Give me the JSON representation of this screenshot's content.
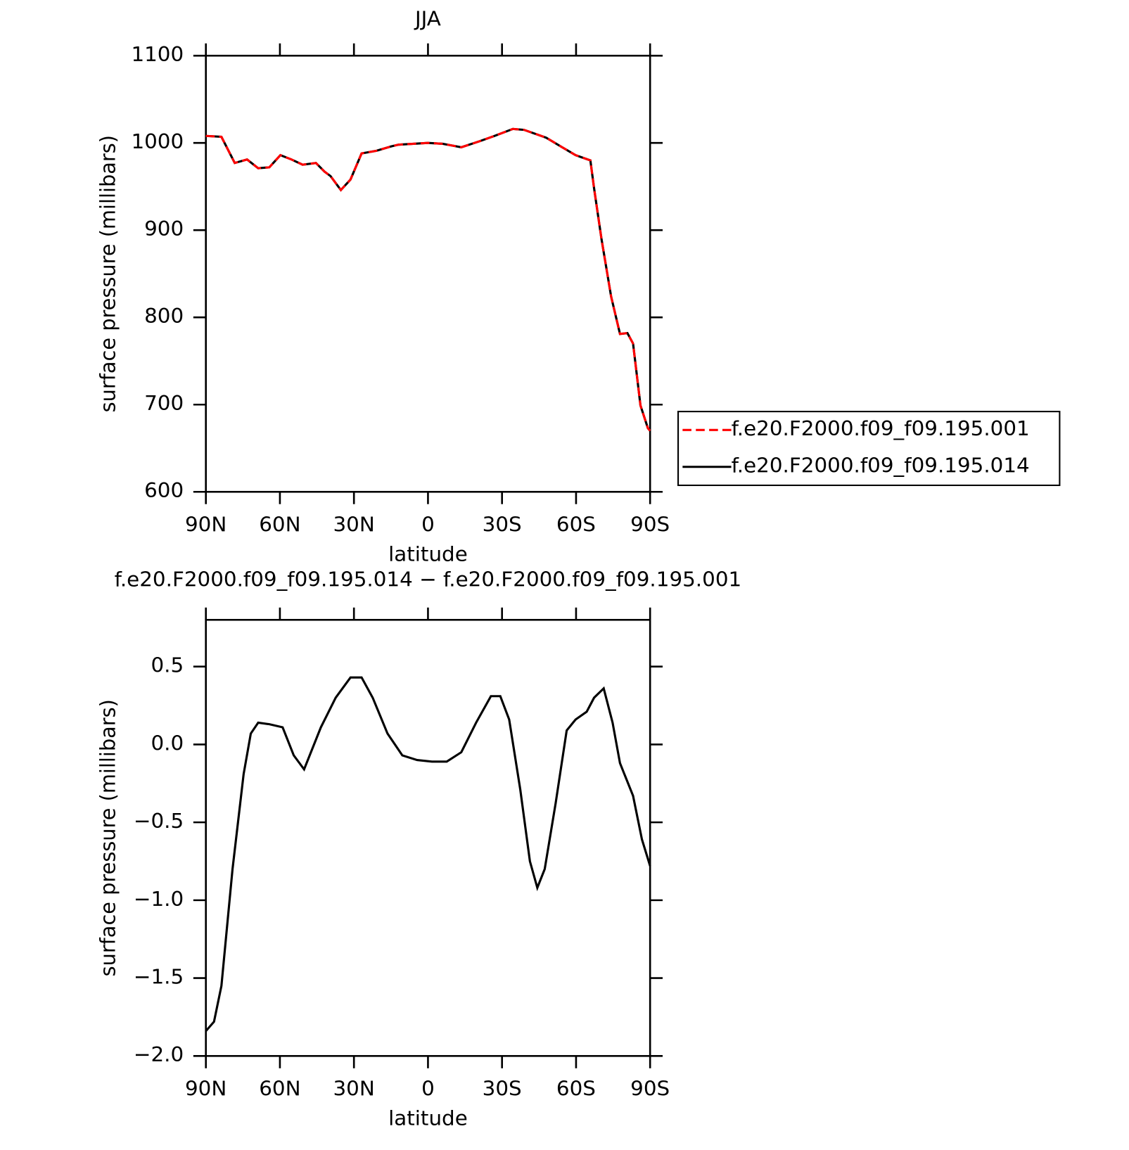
{
  "chart_data": [
    {
      "type": "line",
      "title": "JJA",
      "xlabel": "latitude",
      "ylabel": "surface pressure (millibars)",
      "x": [
        90,
        83.7,
        78.3,
        73.3,
        68.8,
        64.3,
        59.8,
        55.3,
        50.8,
        45.4,
        41.9,
        39.5,
        35.3,
        31.4,
        26.9,
        20.9,
        14.9,
        11.9,
        5.9,
        0,
        -6,
        -13.5,
        -21,
        -26.9,
        -34.4,
        -38.9,
        -47.9,
        -53.8,
        -59.8,
        -65.8,
        -67.3,
        -70.3,
        -74.2,
        -77.8,
        -80.8,
        -83.1,
        -86.1,
        -89.1,
        -90
      ],
      "series": [
        {
          "name": "f.e20.F2000.f09_f09.195.001",
          "color": "#ff0000",
          "linestyle": "dashed",
          "values": [
            1008,
            1007,
            977,
            981,
            971,
            972,
            986,
            981,
            975,
            977,
            967,
            962,
            946,
            958,
            988,
            991,
            996,
            998,
            999,
            1000,
            999,
            995,
            1002,
            1008,
            1016,
            1015,
            1006,
            996,
            986,
            980,
            948,
            890,
            824,
            781,
            782,
            770,
            699,
            673,
            670
          ]
        },
        {
          "name": "f.e20.F2000.f09_f09.195.014",
          "color": "#000000",
          "linestyle": "solid",
          "values": [
            1008,
            1007,
            977,
            981,
            971,
            972,
            986,
            981,
            975,
            977,
            967,
            962,
            946,
            958,
            988,
            991,
            996,
            998,
            999,
            1000,
            999,
            995,
            1002,
            1008,
            1016,
            1015,
            1006,
            996,
            986,
            980,
            948,
            890,
            824,
            781,
            782,
            770,
            699,
            673,
            670
          ]
        }
      ],
      "xlim": [
        90,
        -90
      ],
      "xticks": [
        {
          "value": 90,
          "label": "90N"
        },
        {
          "value": 60,
          "label": "60N"
        },
        {
          "value": 30,
          "label": "30N"
        },
        0,
        {
          "value": -30,
          "label": "30S"
        },
        {
          "value": -60,
          "label": "60S"
        },
        {
          "value": -90,
          "label": "90S"
        }
      ],
      "ylim": [
        600,
        1100
      ],
      "yticks": [
        600,
        700,
        800,
        900,
        1000,
        1100
      ]
    },
    {
      "type": "line",
      "title": "f.e20.F2000.f09_f09.195.014 − f.e20.F2000.f09_f09.195.001",
      "xlabel": "latitude",
      "ylabel": "surface pressure (millibars)",
      "x": [
        90,
        86.7,
        83.7,
        79.2,
        74.7,
        71.8,
        68.8,
        64.3,
        58.9,
        54.4,
        50.2,
        43.4,
        37.4,
        31.4,
        26.9,
        22.4,
        16.4,
        10.4,
        4.4,
        -1.6,
        -7.6,
        -13.5,
        -19.5,
        -25.5,
        -29.3,
        -32.9,
        -37.4,
        -41.3,
        -44.3,
        -47.3,
        -51.7,
        -56.2,
        -59.8,
        -64.3,
        -67.3,
        -71.2,
        -74.8,
        -77.8,
        -83.1,
        -86.7,
        -90
      ],
      "values": [
        -1.84,
        -1.78,
        -1.55,
        -0.8,
        -0.19,
        0.07,
        0.14,
        0.13,
        0.11,
        -0.07,
        -0.16,
        0.11,
        0.3,
        0.43,
        0.43,
        0.3,
        0.07,
        -0.07,
        -0.1,
        -0.11,
        -0.11,
        -0.05,
        0.14,
        0.31,
        0.31,
        0.16,
        -0.29,
        -0.75,
        -0.92,
        -0.8,
        -0.38,
        0.09,
        0.16,
        0.21,
        0.3,
        0.36,
        0.14,
        -0.12,
        -0.33,
        -0.61,
        -0.78
      ],
      "color": "#000000",
      "xlim": [
        90,
        -90
      ],
      "xticks": [
        {
          "value": 90,
          "label": "90N"
        },
        {
          "value": 60,
          "label": "60N"
        },
        {
          "value": 30,
          "label": "30N"
        },
        0,
        {
          "value": -30,
          "label": "30S"
        },
        {
          "value": -60,
          "label": "60S"
        },
        {
          "value": -90,
          "label": "90S"
        }
      ],
      "ylim": [
        -2.0,
        0.8
      ],
      "yticks": [
        {
          "value": -2,
          "label": "−2.0"
        },
        {
          "value": -1.5,
          "label": "−1.5"
        },
        {
          "value": -1,
          "label": "−1.0"
        },
        {
          "value": -0.5,
          "label": "−0.5"
        },
        {
          "value": 0,
          "label": "0.0"
        },
        0.5
      ]
    }
  ]
}
